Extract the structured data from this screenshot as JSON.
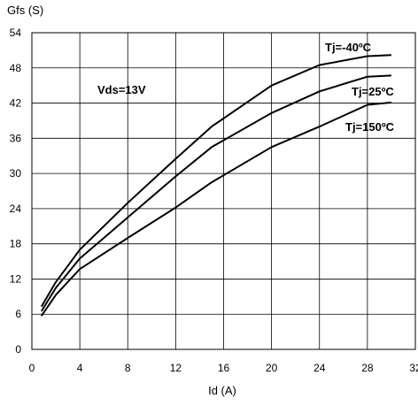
{
  "chart_data": {
    "type": "line",
    "ylabel": "Gfs (S)",
    "xlabel": "Id (A)",
    "xlim": [
      0,
      32
    ],
    "ylim": [
      0,
      54
    ],
    "xticks": [
      0,
      4,
      8,
      12,
      16,
      20,
      24,
      28,
      32
    ],
    "yticks": [
      0,
      6,
      12,
      18,
      24,
      30,
      36,
      42,
      48,
      54
    ],
    "grid": true,
    "annotation": "Vds=13V",
    "series": [
      {
        "name": "Tj=-40ºC",
        "x": [
          0.8,
          2,
          4,
          8,
          12,
          15,
          20,
          24,
          28,
          30
        ],
        "y": [
          7.3,
          11.5,
          17,
          25,
          32.5,
          38,
          45,
          48.5,
          50,
          50.2
        ]
      },
      {
        "name": "Tj=25ºC",
        "x": [
          0.8,
          2,
          4,
          8,
          12,
          15,
          20,
          24,
          28,
          30
        ],
        "y": [
          6.5,
          10.5,
          15.5,
          22.5,
          29.5,
          34.5,
          40.3,
          44,
          46.5,
          46.7
        ]
      },
      {
        "name": "Tj=150ºC",
        "x": [
          0.8,
          2,
          4,
          8,
          12,
          15,
          20,
          24,
          28,
          30
        ],
        "y": [
          5.7,
          9.3,
          13.7,
          19,
          24.2,
          28.5,
          34.5,
          38,
          41.7,
          42.1
        ]
      }
    ]
  }
}
